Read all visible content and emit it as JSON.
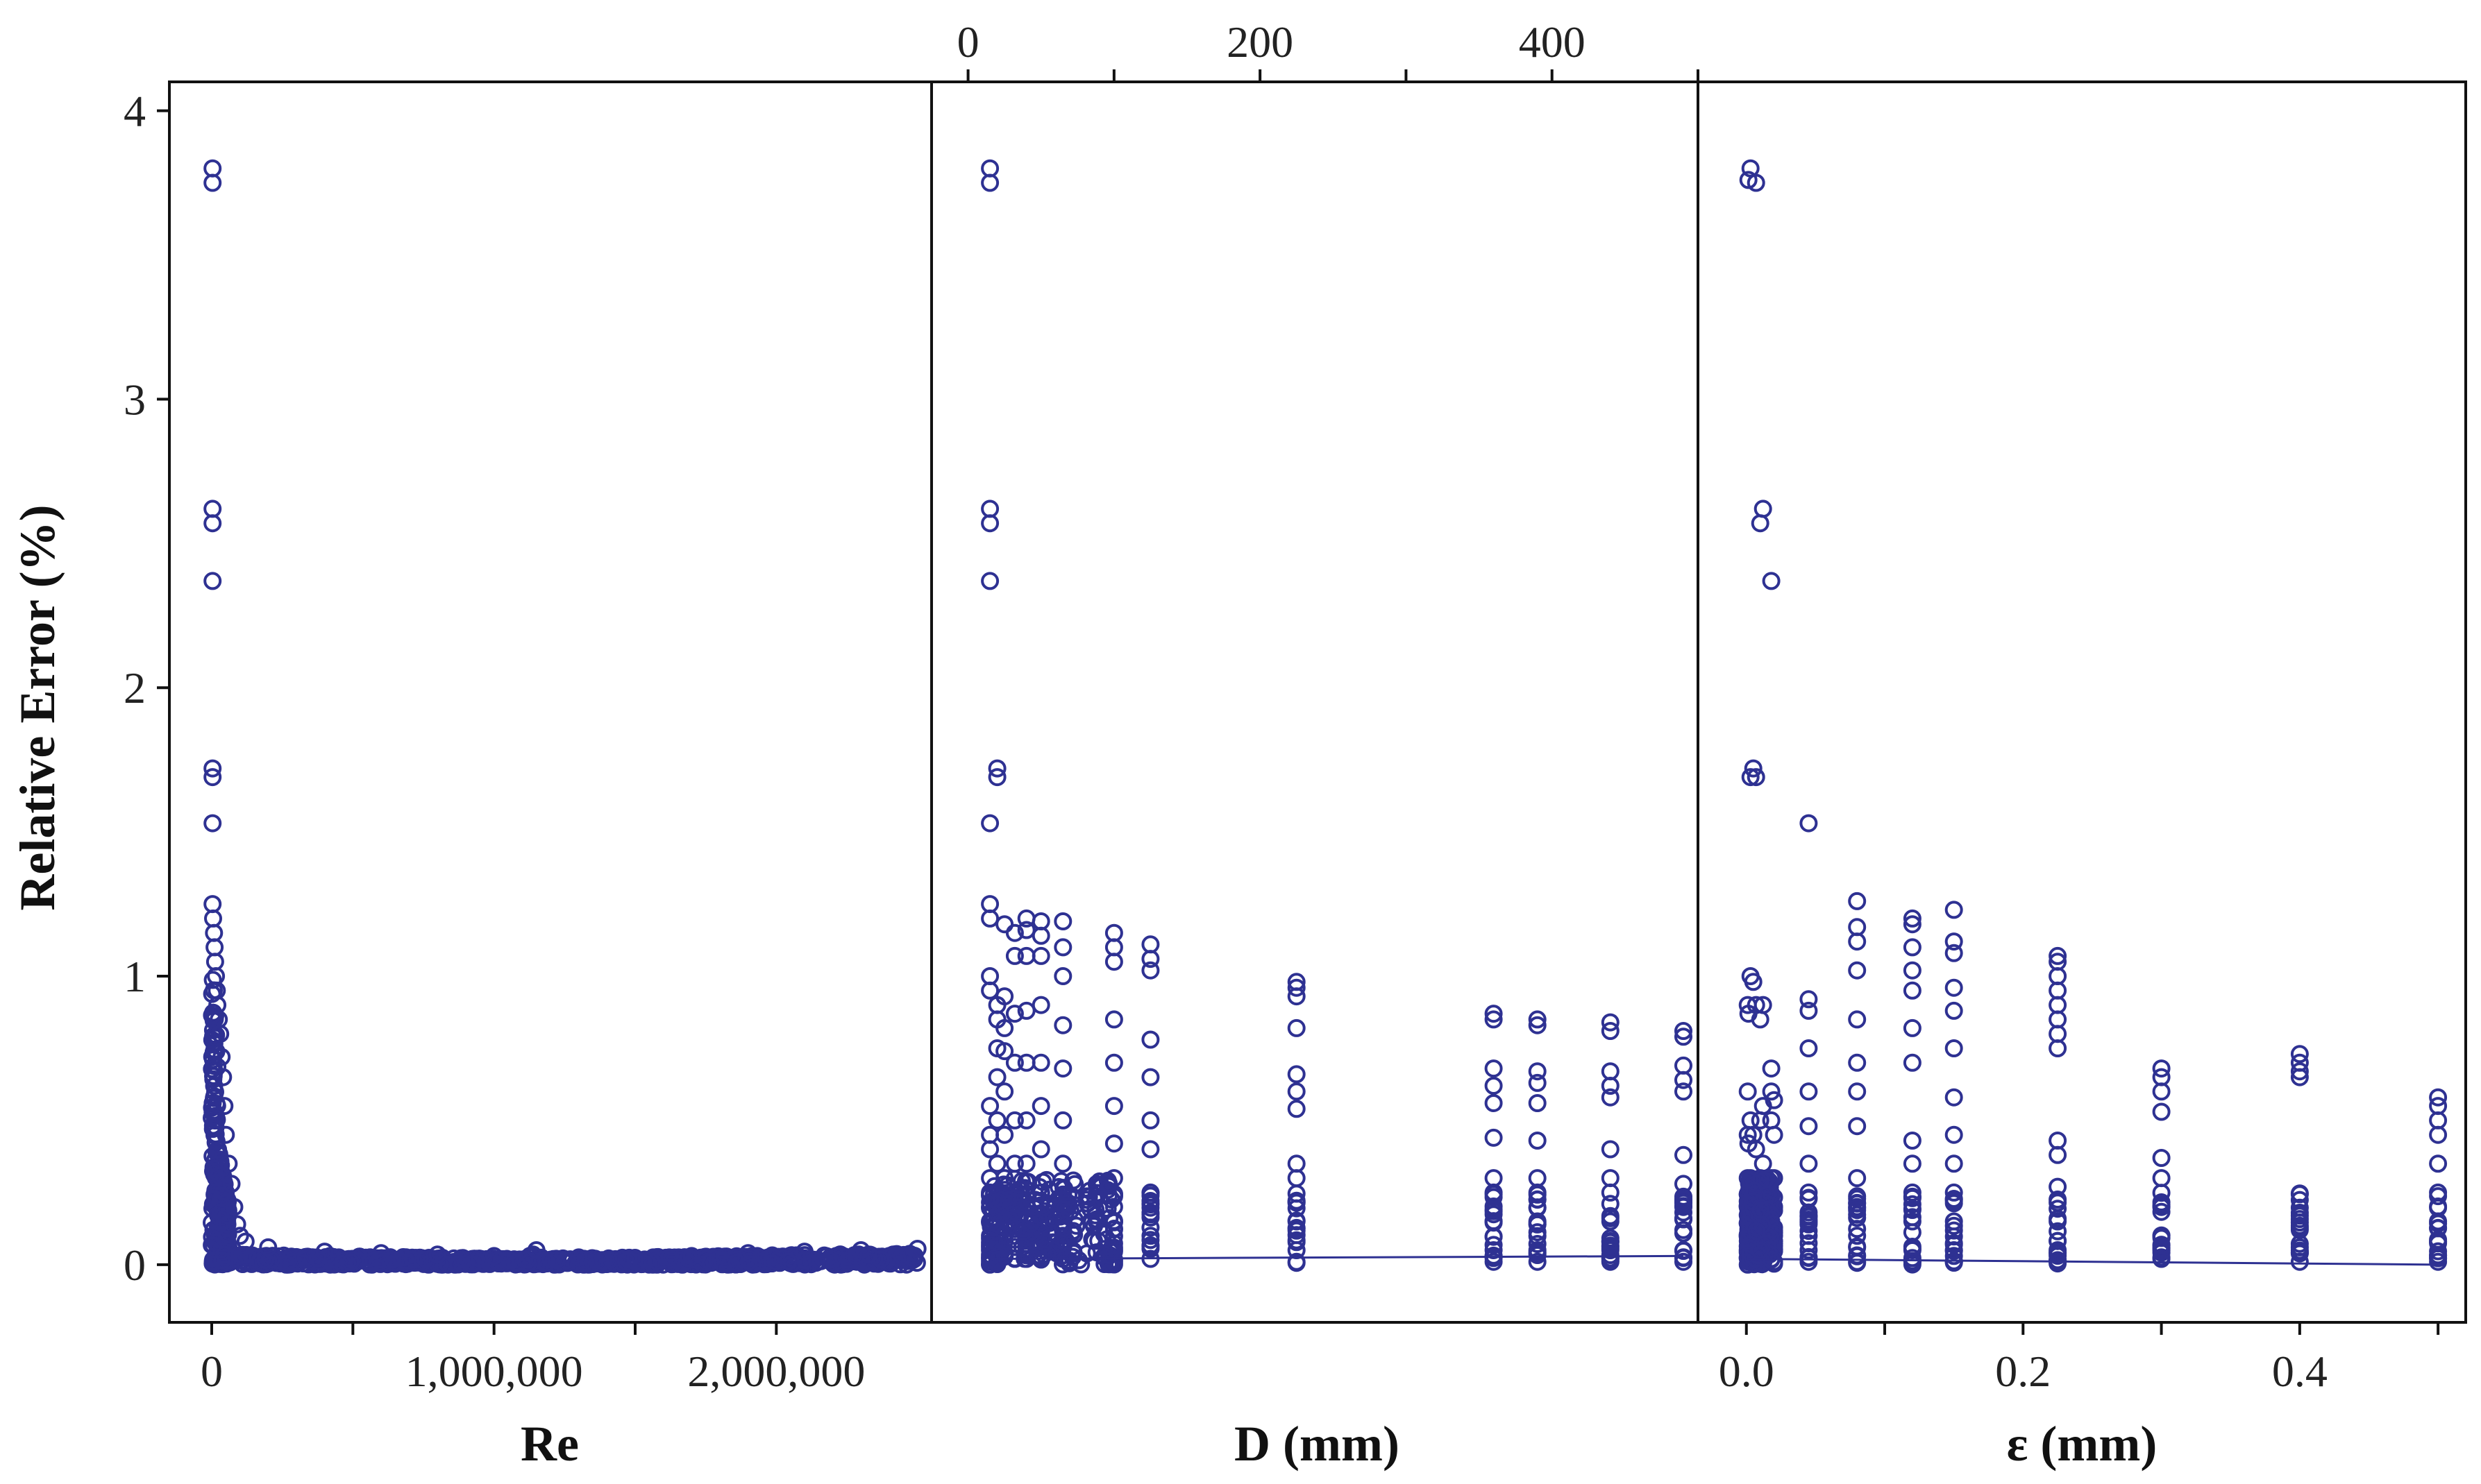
{
  "colors": {
    "marker": "#2e3192",
    "axis": "#111111"
  },
  "chart_data": {
    "type": "scatter",
    "ylabel": "Relative Error (%)",
    "ylim": [
      -0.2,
      4.1
    ],
    "yticks": [
      0,
      1,
      2,
      3,
      4
    ],
    "ytick_labels": [
      "0",
      "1",
      "2",
      "3",
      "4"
    ],
    "panels": [
      {
        "xlabel": "Re",
        "xlim": [
          -150000,
          2550000
        ],
        "xticks": [
          0,
          1000000,
          2000000
        ],
        "xtick_labels": [
          "0",
          "1,000,000",
          "2,000,000"
        ],
        "minor_xticks": [
          500000,
          1500000
        ],
        "dense_cluster": {
          "x_range": [
            0,
            2500000
          ],
          "y_range": [
            0.0,
            0.06
          ]
        },
        "low_re_spike": [
          [
            3000,
            3.8
          ],
          [
            3000,
            3.75
          ],
          [
            3000,
            2.62
          ],
          [
            3000,
            2.57
          ],
          [
            3000,
            2.37
          ],
          [
            3000,
            1.72
          ],
          [
            3000,
            1.69
          ],
          [
            3000,
            1.53
          ],
          [
            3000,
            1.25
          ],
          [
            5000,
            1.2
          ],
          [
            8000,
            1.15
          ],
          [
            10000,
            1.1
          ],
          [
            12000,
            1.05
          ],
          [
            15000,
            1.0
          ],
          [
            18000,
            0.95
          ],
          [
            20000,
            0.9
          ],
          [
            25000,
            0.85
          ],
          [
            30000,
            0.8
          ],
          [
            35000,
            0.72
          ],
          [
            40000,
            0.65
          ],
          [
            45000,
            0.55
          ],
          [
            50000,
            0.45
          ],
          [
            60000,
            0.35
          ],
          [
            70000,
            0.28
          ],
          [
            80000,
            0.2
          ],
          [
            90000,
            0.14
          ],
          [
            100000,
            0.1
          ],
          [
            120000,
            0.08
          ]
        ],
        "sample_points": [
          [
            200000,
            0.06
          ],
          [
            400000,
            0.045
          ],
          [
            600000,
            0.04
          ],
          [
            800000,
            0.035
          ],
          [
            1000000,
            0.03
          ],
          [
            1150000,
            0.05
          ],
          [
            1300000,
            0.025
          ],
          [
            1500000,
            0.02
          ],
          [
            1700000,
            0.03
          ],
          [
            1900000,
            0.04
          ],
          [
            2100000,
            0.045
          ],
          [
            2300000,
            0.05
          ],
          [
            2500000,
            0.055
          ]
        ]
      },
      {
        "xlabel": "D (mm)",
        "xlim": [
          -25,
          500
        ],
        "xticks": [
          0,
          200,
          400
        ],
        "xtick_labels": [
          "0",
          "200",
          "400"
        ],
        "minor_xticks": [
          100,
          300,
          500
        ],
        "columns": [
          {
            "x": 15,
            "y": [
              3.8,
              3.75,
              2.62,
              2.57,
              2.37,
              1.53,
              1.25,
              1.2,
              1.0,
              0.95,
              0.55,
              0.45,
              0.4,
              0.3,
              0.25,
              0.2,
              0.15,
              0.1,
              0.05,
              0.02,
              0.0
            ]
          },
          {
            "x": 20,
            "y": [
              1.72,
              1.69,
              0.9,
              0.85,
              0.75,
              0.65,
              0.5,
              0.35,
              0.25,
              0.15,
              0.1,
              0.05,
              0.01
            ]
          },
          {
            "x": 25,
            "y": [
              1.18,
              0.93,
              0.82,
              0.74,
              0.6,
              0.45,
              0.3,
              0.2,
              0.1,
              0.03
            ]
          },
          {
            "x": 32,
            "y": [
              1.15,
              1.07,
              0.87,
              0.7,
              0.5,
              0.35,
              0.2,
              0.1,
              0.02
            ]
          },
          {
            "x": 40,
            "y": [
              1.2,
              1.16,
              1.07,
              0.88,
              0.7,
              0.5,
              0.35,
              0.2,
              0.1,
              0.02
            ]
          },
          {
            "x": 50,
            "y": [
              1.19,
              1.14,
              1.07,
              0.9,
              0.7,
              0.55,
              0.4,
              0.25,
              0.1,
              0.02
            ]
          },
          {
            "x": 65,
            "y": [
              1.19,
              1.1,
              1.0,
              0.83,
              0.68,
              0.5,
              0.35,
              0.2,
              0.1,
              0.02
            ]
          },
          {
            "x": 100,
            "y": [
              1.15,
              1.1,
              1.05,
              0.85,
              0.7,
              0.55,
              0.42,
              0.3,
              0.15,
              0.05,
              0.01
            ]
          },
          {
            "x": 125,
            "y": [
              1.11,
              1.06,
              1.02,
              0.78,
              0.65,
              0.5,
              0.4,
              0.25,
              0.1,
              0.02
            ]
          },
          {
            "x": 225,
            "y": [
              0.98,
              0.96,
              0.93,
              0.82,
              0.66,
              0.6,
              0.54,
              0.35,
              0.3,
              0.15,
              0.05,
              0.01
            ]
          },
          {
            "x": 360,
            "y": [
              0.87,
              0.85,
              0.68,
              0.62,
              0.56,
              0.44,
              0.3,
              0.25,
              0.15,
              0.05,
              0.01
            ]
          },
          {
            "x": 390,
            "y": [
              0.85,
              0.83,
              0.67,
              0.63,
              0.56,
              0.43,
              0.3,
              0.25,
              0.15,
              0.05,
              0.01
            ]
          },
          {
            "x": 440,
            "y": [
              0.84,
              0.81,
              0.67,
              0.62,
              0.58,
              0.4,
              0.3,
              0.25,
              0.15,
              0.05,
              0.01
            ]
          },
          {
            "x": 490,
            "y": [
              0.81,
              0.79,
              0.69,
              0.64,
              0.6,
              0.38,
              0.28,
              0.2,
              0.12,
              0.05,
              0.01
            ]
          }
        ],
        "trend_line": [
          [
            15,
            0.02
          ],
          [
            490,
            0.03
          ]
        ]
      },
      {
        "xlabel": "ε (mm)",
        "xlim": [
          -0.035,
          0.52
        ],
        "xticks": [
          0.0,
          0.2,
          0.4
        ],
        "xtick_labels": [
          "0.0",
          "0.2",
          "0.4"
        ],
        "minor_xticks": [
          0.1,
          0.3,
          0.5
        ],
        "columns": [
          {
            "x": 0.001,
            "y": [
              0.9,
              0.6,
              0.45,
              0.3,
              0.2,
              0.1,
              0.05,
              0.0
            ]
          },
          {
            "x": 0.0015,
            "y": [
              3.76,
              0.87,
              0.42,
              0.25,
              0.1,
              0.01
            ]
          },
          {
            "x": 0.003,
            "y": [
              3.8,
              1.69,
              1.0,
              0.5,
              0.3,
              0.15,
              0.02
            ]
          },
          {
            "x": 0.005,
            "y": [
              1.72,
              0.98,
              0.45,
              0.25,
              0.1,
              0.01
            ]
          },
          {
            "x": 0.007,
            "y": [
              3.75,
              1.69,
              0.9,
              0.4,
              0.2,
              0.05
            ]
          },
          {
            "x": 0.01,
            "y": [
              2.57,
              0.85,
              0.5,
              0.3,
              0.1,
              0.02
            ]
          },
          {
            "x": 0.012,
            "y": [
              2.62,
              0.9,
              0.55,
              0.35,
              0.15,
              0.01
            ]
          },
          {
            "x": 0.018,
            "y": [
              2.37,
              0.68,
              0.6,
              0.5,
              0.3,
              0.15,
              0.02
            ]
          },
          {
            "x": 0.02,
            "y": [
              0.57,
              0.45,
              0.3,
              0.2,
              0.1,
              0.01
            ]
          },
          {
            "x": 0.045,
            "y": [
              1.53,
              0.92,
              0.88,
              0.75,
              0.6,
              0.48,
              0.35,
              0.25,
              0.15,
              0.05,
              0.01
            ]
          },
          {
            "x": 0.08,
            "y": [
              1.26,
              1.17,
              1.12,
              1.02,
              0.85,
              0.7,
              0.6,
              0.48,
              0.3,
              0.2,
              0.1,
              0.01
            ]
          },
          {
            "x": 0.12,
            "y": [
              1.2,
              1.18,
              1.1,
              1.02,
              0.95,
              0.82,
              0.7,
              0.43,
              0.35,
              0.25,
              0.15,
              0.05,
              0.01
            ]
          },
          {
            "x": 0.15,
            "y": [
              1.23,
              1.12,
              1.08,
              0.96,
              0.88,
              0.75,
              0.58,
              0.45,
              0.35,
              0.25,
              0.15,
              0.05,
              0.01
            ]
          },
          {
            "x": 0.225,
            "y": [
              1.07,
              1.05,
              1.0,
              0.95,
              0.9,
              0.85,
              0.8,
              0.75,
              0.43,
              0.38,
              0.27,
              0.15,
              0.05,
              0.01
            ]
          },
          {
            "x": 0.3,
            "y": [
              0.68,
              0.65,
              0.6,
              0.53,
              0.37,
              0.3,
              0.2,
              0.1,
              0.02
            ]
          },
          {
            "x": 0.4,
            "y": [
              0.73,
              0.7,
              0.67,
              0.65,
              0.18,
              0.12,
              0.06,
              0.01
            ]
          },
          {
            "x": 0.5,
            "y": [
              0.58,
              0.55,
              0.5,
              0.45,
              0.35,
              0.25,
              0.15,
              0.08,
              0.01
            ]
          }
        ],
        "trend_line": [
          [
            0.0,
            0.02
          ],
          [
            0.5,
            0.0
          ]
        ]
      }
    ]
  }
}
